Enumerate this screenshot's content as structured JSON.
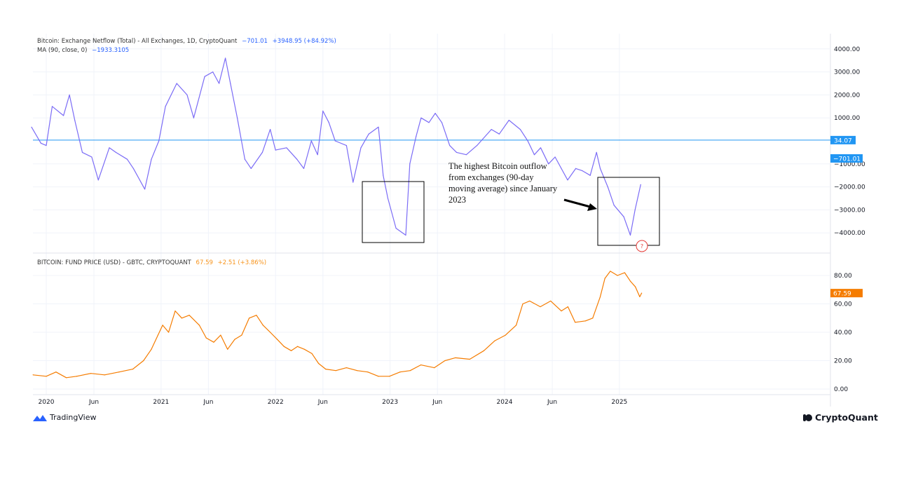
{
  "chart_data": [
    {
      "type": "line",
      "title": "Bitcoin: Exchange Netflow (Total) - All Exchanges, 1D, CryptoQuant",
      "last_value": "−701.01",
      "change": "+3948.95 (+84.92%)",
      "ma_label": "MA (90, close, 0)",
      "ma_value": "−1933.3105",
      "color": "#7b6cf6",
      "ylim": [
        -4500,
        4000
      ],
      "yticks": [
        "4000.00",
        "3000.00",
        "2000.00",
        "1000.00",
        "−1000.00",
        "−2000.00",
        "−3000.00",
        "−4000.00"
      ],
      "ytick_values": [
        4000,
        3000,
        2000,
        1000,
        -1000,
        -2000,
        -3000,
        -4000
      ],
      "hline": {
        "value": 34.07,
        "label": "34.07",
        "color": "#2196f3"
      },
      "price_tag": {
        "value": -701.01,
        "label": "−701.01",
        "color": "#2196f3"
      },
      "x": [
        "2019-11-15",
        "2019-12-15",
        "2020-01-01",
        "2020-01-20",
        "2020-02-25",
        "2020-03-15",
        "2020-04-01",
        "2020-04-25",
        "2020-05-25",
        "2020-06-15",
        "2020-07-20",
        "2020-08-10",
        "2020-09-15",
        "2020-10-05",
        "2020-11-10",
        "2020-12-01",
        "2020-12-25",
        "2021-01-15",
        "2021-02-20",
        "2021-03-25",
        "2021-04-15",
        "2021-05-20",
        "2021-06-15",
        "2021-07-05",
        "2021-07-25",
        "2021-08-10",
        "2021-09-01",
        "2021-09-25",
        "2021-10-15",
        "2021-11-20",
        "2021-12-15",
        "2022-01-01",
        "2022-02-05",
        "2022-03-10",
        "2022-04-01",
        "2022-04-25",
        "2022-05-15",
        "2022-06-01",
        "2022-06-20",
        "2022-07-10",
        "2022-08-15",
        "2022-09-05",
        "2022-09-30",
        "2022-10-25",
        "2022-11-25",
        "2022-12-10",
        "2022-12-25",
        "2023-01-20",
        "2023-02-20",
        "2023-03-05",
        "2023-03-25",
        "2023-04-10",
        "2023-05-05",
        "2023-05-25",
        "2023-06-15",
        "2023-07-10",
        "2023-08-01",
        "2023-09-01",
        "2023-10-05",
        "2023-11-20",
        "2023-12-15",
        "2024-01-15",
        "2024-02-20",
        "2024-03-15",
        "2024-04-05",
        "2024-04-25",
        "2024-05-20",
        "2024-06-10",
        "2024-06-30",
        "2024-07-20",
        "2024-08-15",
        "2024-09-05",
        "2024-09-30",
        "2024-10-20",
        "2024-11-01",
        "2024-11-25",
        "2024-12-15",
        "2025-01-15",
        "2025-02-05",
        "2025-02-20",
        "2025-03-10"
      ],
      "y": [
        600,
        -100,
        -200,
        1500,
        1100,
        2000,
        900,
        -500,
        -700,
        -1700,
        -300,
        -500,
        -800,
        -1200,
        -2100,
        -800,
        0,
        1500,
        2500,
        2000,
        1000,
        2800,
        3000,
        2500,
        3600,
        2500,
        1000,
        -800,
        -1200,
        -500,
        500,
        -400,
        -300,
        -800,
        -1200,
        0,
        -600,
        1300,
        800,
        0,
        -200,
        -1800,
        -300,
        300,
        600,
        -1500,
        -2500,
        -3800,
        -4100,
        -1000,
        200,
        1000,
        800,
        1200,
        800,
        -200,
        -500,
        -600,
        -200,
        500,
        300,
        900,
        500,
        0,
        -600,
        -300,
        -1000,
        -700,
        -1200,
        -1700,
        -1200,
        -1300,
        -1500,
        -500,
        -1200,
        -2000,
        -2800,
        -3300,
        -4100,
        -3000,
        -1900
      ],
      "annotation": "The highest Bitcoin outflow from exchanges (90-day moving average) since January 2023"
    },
    {
      "type": "line",
      "title": "BITCOIN: FUND PRICE (USD) - GBTC, CRYPTOQUANT",
      "last_value": "67.59",
      "change": "+2.51 (+3.86%)",
      "color": "#f57c00",
      "ylim": [
        -3,
        88
      ],
      "yticks": [
        "80.00",
        "60.00",
        "40.00",
        "20.00",
        "0.00"
      ],
      "ytick_values": [
        80,
        60,
        40,
        20,
        0
      ],
      "price_tag": {
        "value": 67.59,
        "label": "67.59",
        "color": "#f57c00"
      },
      "x": [
        "2019-11-20",
        "2020-01-01",
        "2020-02-01",
        "2020-03-05",
        "2020-04-07",
        "2020-05-22",
        "2020-07-05",
        "2020-08-20",
        "2020-10-03",
        "2020-11-06",
        "2020-12-01",
        "2020-12-22",
        "2021-01-06",
        "2021-01-25",
        "2021-02-15",
        "2021-03-08",
        "2021-04-01",
        "2021-05-03",
        "2021-05-25",
        "2021-06-18",
        "2021-07-10",
        "2021-08-01",
        "2021-08-24",
        "2021-09-15",
        "2021-10-09",
        "2021-11-01",
        "2021-11-22",
        "2021-12-15",
        "2022-01-06",
        "2022-01-28",
        "2022-02-20",
        "2022-03-12",
        "2022-04-03",
        "2022-04-27",
        "2022-05-18",
        "2022-06-10",
        "2022-07-12",
        "2022-08-15",
        "2022-09-18",
        "2022-10-22",
        "2022-11-25",
        "2022-12-30",
        "2023-02-02",
        "2023-03-06",
        "2023-04-09",
        "2023-05-22",
        "2023-06-25",
        "2023-07-28",
        "2023-09-12",
        "2023-10-27",
        "2023-12-01",
        "2024-01-04",
        "2024-02-07",
        "2024-02-28",
        "2024-03-21",
        "2024-04-24",
        "2024-05-27",
        "2024-06-30",
        "2024-07-21",
        "2024-08-13",
        "2024-09-15",
        "2024-10-08",
        "2024-11-01",
        "2024-11-16",
        "2024-12-03",
        "2024-12-26",
        "2025-01-18",
        "2025-02-05",
        "2025-02-21",
        "2025-03-07",
        "2025-03-13"
      ],
      "y": [
        10,
        9,
        12,
        8,
        9,
        11,
        10,
        12,
        14,
        20,
        28,
        38,
        45,
        40,
        55,
        50,
        52,
        45,
        36,
        33,
        38,
        28,
        35,
        38,
        50,
        52,
        45,
        40,
        35,
        30,
        27,
        30,
        28,
        25,
        18,
        14,
        13,
        15,
        13,
        12,
        9,
        9,
        12,
        13,
        17,
        15,
        20,
        22,
        21,
        27,
        34,
        38,
        45,
        60,
        62,
        58,
        62,
        55,
        58,
        47,
        48,
        50,
        65,
        78,
        83,
        80,
        82,
        76,
        72,
        65,
        67.59
      ]
    }
  ],
  "x_axis": {
    "ticks": [
      "2020",
      "Jun",
      "2021",
      "Jun",
      "2022",
      "Jun",
      "2023",
      "Jun",
      "2024",
      "Jun",
      "2025"
    ],
    "tick_dates": [
      "2020-01-01",
      "2020-06-01",
      "2021-01-01",
      "2021-06-01",
      "2022-01-01",
      "2022-06-01",
      "2023-01-01",
      "2023-06-01",
      "2024-01-01",
      "2024-06-01",
      "2025-01-01"
    ]
  },
  "branding": {
    "left": "TradingView",
    "right": "CryptoQuant"
  }
}
